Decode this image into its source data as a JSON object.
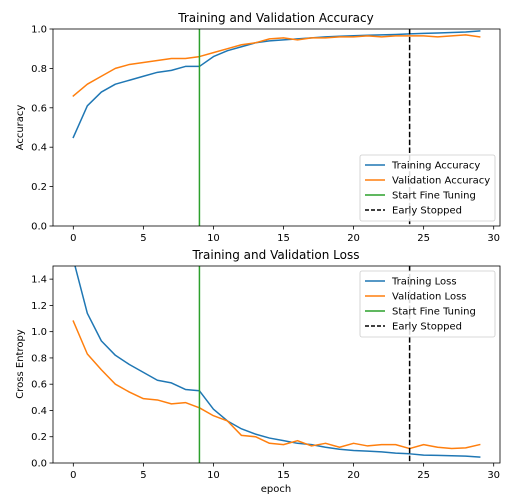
{
  "chart_data": [
    {
      "type": "line",
      "title": "Training and Validation Accuracy",
      "xlabel": "",
      "ylabel": "Accuracy",
      "xlim": [
        -1.45,
        30.45
      ],
      "ylim": [
        0,
        1.0
      ],
      "xticks": [
        0,
        5,
        10,
        15,
        20,
        25,
        30
      ],
      "xtick_labels": [
        "0",
        "5",
        "10",
        "15",
        "20",
        "25",
        "30"
      ],
      "yticks": [
        0,
        0.2,
        0.4,
        0.6,
        0.8,
        1.0
      ],
      "ytick_labels": [
        "0.0",
        "0.2",
        "0.4",
        "0.6",
        "0.8",
        "1.0"
      ],
      "grid": false,
      "legend": "lower-right",
      "x": [
        0,
        1,
        2,
        3,
        4,
        5,
        6,
        7,
        8,
        9,
        10,
        11,
        12,
        13,
        14,
        15,
        16,
        17,
        18,
        19,
        20,
        21,
        22,
        23,
        24,
        25,
        26,
        27,
        28,
        29
      ],
      "series": [
        {
          "name": "Training Accuracy",
          "color": "#1f77b4",
          "values": [
            0.45,
            0.61,
            0.68,
            0.72,
            0.74,
            0.76,
            0.78,
            0.79,
            0.81,
            0.81,
            0.86,
            0.89,
            0.91,
            0.93,
            0.94,
            0.945,
            0.95,
            0.955,
            0.96,
            0.963,
            0.966,
            0.968,
            0.97,
            0.972,
            0.975,
            0.978,
            0.98,
            0.982,
            0.985,
            0.99
          ]
        },
        {
          "name": "Validation Accuracy",
          "color": "#ff7f0e",
          "values": [
            0.66,
            0.72,
            0.76,
            0.8,
            0.82,
            0.83,
            0.84,
            0.85,
            0.85,
            0.86,
            0.88,
            0.9,
            0.92,
            0.93,
            0.95,
            0.955,
            0.945,
            0.955,
            0.955,
            0.96,
            0.96,
            0.965,
            0.96,
            0.965,
            0.965,
            0.965,
            0.96,
            0.965,
            0.97,
            0.96
          ]
        }
      ],
      "vlines": [
        {
          "name": "Start Fine Tuning",
          "x": 9,
          "color": "#2ca02c",
          "style": "solid"
        },
        {
          "name": "Early Stopped",
          "x": 24,
          "color": "#000000",
          "style": "dashed"
        }
      ]
    },
    {
      "type": "line",
      "title": "Training and Validation Loss",
      "xlabel": "epoch",
      "ylabel": "Cross Entropy",
      "xlim": [
        -1.45,
        30.45
      ],
      "ylim": [
        0,
        1.5
      ],
      "xticks": [
        0,
        5,
        10,
        15,
        20,
        25,
        30
      ],
      "xtick_labels": [
        "0",
        "5",
        "10",
        "15",
        "20",
        "25",
        "30"
      ],
      "yticks": [
        0,
        0.2,
        0.4,
        0.6,
        0.8,
        1.0,
        1.2,
        1.4
      ],
      "ytick_labels": [
        "0.0",
        "0.2",
        "0.4",
        "0.6",
        "0.8",
        "1.0",
        "1.2",
        "1.4"
      ],
      "grid": false,
      "legend": "upper-right",
      "x": [
        0,
        1,
        2,
        3,
        4,
        5,
        6,
        7,
        8,
        9,
        10,
        11,
        12,
        13,
        14,
        15,
        16,
        17,
        18,
        19,
        20,
        21,
        22,
        23,
        24,
        25,
        26,
        27,
        28,
        29
      ],
      "series": [
        {
          "name": "Training Loss",
          "color": "#1f77b4",
          "values": [
            1.55,
            1.14,
            0.93,
            0.82,
            0.75,
            0.69,
            0.63,
            0.61,
            0.56,
            0.55,
            0.41,
            0.32,
            0.26,
            0.22,
            0.19,
            0.17,
            0.15,
            0.14,
            0.12,
            0.105,
            0.095,
            0.09,
            0.085,
            0.075,
            0.07,
            0.06,
            0.058,
            0.055,
            0.052,
            0.045
          ]
        },
        {
          "name": "Validation Loss",
          "color": "#ff7f0e",
          "values": [
            1.08,
            0.83,
            0.71,
            0.6,
            0.54,
            0.49,
            0.48,
            0.45,
            0.46,
            0.42,
            0.36,
            0.32,
            0.21,
            0.2,
            0.15,
            0.14,
            0.17,
            0.13,
            0.15,
            0.12,
            0.15,
            0.13,
            0.14,
            0.14,
            0.11,
            0.14,
            0.12,
            0.11,
            0.115,
            0.14
          ]
        }
      ],
      "vlines": [
        {
          "name": "Start Fine Tuning",
          "x": 9,
          "color": "#2ca02c",
          "style": "solid"
        },
        {
          "name": "Early Stopped",
          "x": 24,
          "color": "#000000",
          "style": "dashed"
        }
      ]
    }
  ]
}
